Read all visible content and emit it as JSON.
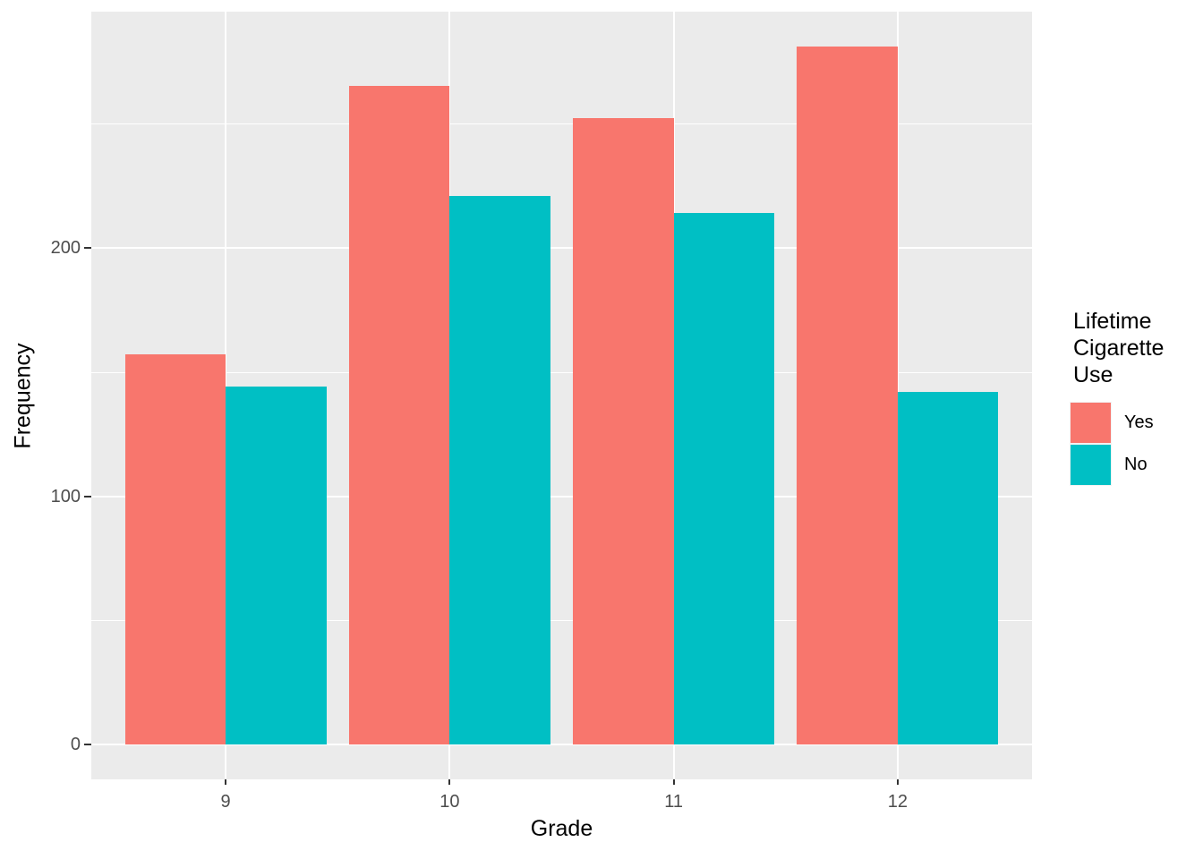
{
  "figure": {
    "background": "#FFFFFF",
    "panel_background": "#EBEBEB",
    "gridline_color": "#FFFFFF",
    "tick_label_color": "#4D4D4D",
    "tick_mark_color": "#333333"
  },
  "chart_data": {
    "type": "bar",
    "subtype": "grouped-dodged",
    "title": "",
    "xlabel": "Grade",
    "ylabel": "Frequency",
    "categories": [
      "9",
      "10",
      "11",
      "12"
    ],
    "series": [
      {
        "name": "Yes",
        "color": "#F8766D",
        "values": [
          157,
          265,
          252,
          281
        ]
      },
      {
        "name": "No",
        "color": "#00BFC4",
        "values": [
          144,
          221,
          214,
          142
        ]
      }
    ],
    "y_ticks": [
      0,
      100,
      200
    ],
    "y_minor_gridlines": [
      50,
      150,
      250
    ],
    "ylim_expanded": [
      -14,
      295
    ],
    "grid": "on",
    "legend_position": "right"
  },
  "legend": {
    "title": "Lifetime\nCigarette\nUse",
    "items": [
      {
        "label": "Yes",
        "color": "#F8766D"
      },
      {
        "label": "No",
        "color": "#00BFC4"
      }
    ]
  }
}
